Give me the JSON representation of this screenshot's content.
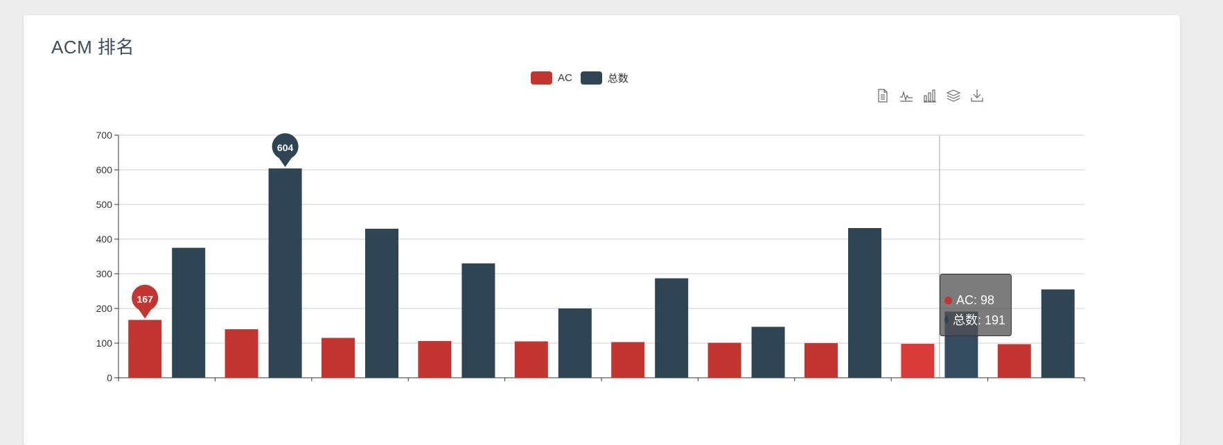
{
  "page": {
    "title": "ACM 排名"
  },
  "colors": {
    "ac": "#c23531",
    "total": "#2f4554",
    "ac_highlight": "#d83b37",
    "total_highlight": "#344c5f"
  },
  "legend": [
    {
      "name": "AC",
      "color": "#c23531"
    },
    {
      "name": "总数",
      "color": "#2f4554"
    }
  ],
  "toolbox": [
    {
      "name": "data-view-icon"
    },
    {
      "name": "line-chart-icon"
    },
    {
      "name": "bar-chart-icon"
    },
    {
      "name": "stack-icon"
    },
    {
      "name": "save-image-icon"
    }
  ],
  "tooltip": {
    "category": "",
    "ac_label": "AC: 98",
    "total_label": "总数: 191"
  },
  "chart_data": {
    "type": "bar",
    "title": "ACM 排名",
    "categories": [
      "",
      "",
      "",
      "",
      "",
      "",
      "",
      "",
      "",
      ""
    ],
    "series": [
      {
        "name": "AC",
        "values": [
          167,
          140,
          115,
          106,
          105,
          103,
          101,
          100,
          98,
          97
        ]
      },
      {
        "name": "总数",
        "values": [
          375,
          604,
          430,
          330,
          200,
          287,
          147,
          432,
          191,
          255
        ]
      }
    ],
    "ylim": [
      0,
      700
    ],
    "yticks": [
      0,
      100,
      200,
      300,
      400,
      500,
      600,
      700
    ],
    "grid": true,
    "legend_position": "top-center",
    "markers": [
      {
        "series": "AC",
        "label": "167"
      },
      {
        "series": "总数",
        "label": "604"
      }
    ],
    "hover_index": 8
  }
}
